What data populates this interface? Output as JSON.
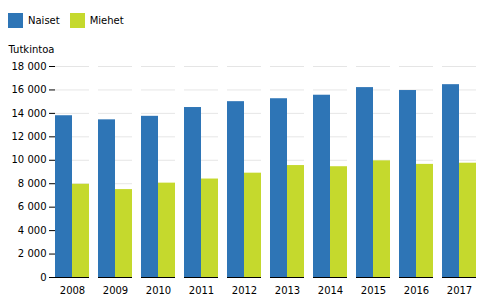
{
  "chart_data": {
    "type": "bar",
    "ylabel": "Tutkintoa",
    "categories": [
      "2008",
      "2009",
      "2010",
      "2011",
      "2012",
      "2013",
      "2014",
      "2015",
      "2016",
      "2017"
    ],
    "series": [
      {
        "name": "Naiset",
        "color": "#2e75b6",
        "values": [
          13800,
          13450,
          13750,
          14500,
          15000,
          15250,
          15550,
          16200,
          15950,
          16450
        ]
      },
      {
        "name": "Miehet",
        "color": "#c5d92d",
        "values": [
          7950,
          7500,
          8050,
          8400,
          8900,
          9550,
          9450,
          9950,
          9650,
          9750
        ]
      }
    ],
    "ylim": [
      0,
      18000
    ],
    "yticks": [
      0,
      {
        "value": 2000,
        "label": "2 000"
      },
      {
        "value": 4000,
        "label": "4 000"
      },
      {
        "value": 6000,
        "label": "6 000"
      },
      {
        "value": 8000,
        "label": "8 000"
      },
      {
        "value": 10000,
        "label": "10 000"
      },
      {
        "value": 12000,
        "label": "12 000"
      },
      {
        "value": 14000,
        "label": "14 000"
      },
      {
        "value": 16000,
        "label": "16 000"
      },
      {
        "value": 18000,
        "label": "18 000"
      }
    ],
    "grid": true,
    "legend": "upper left"
  }
}
